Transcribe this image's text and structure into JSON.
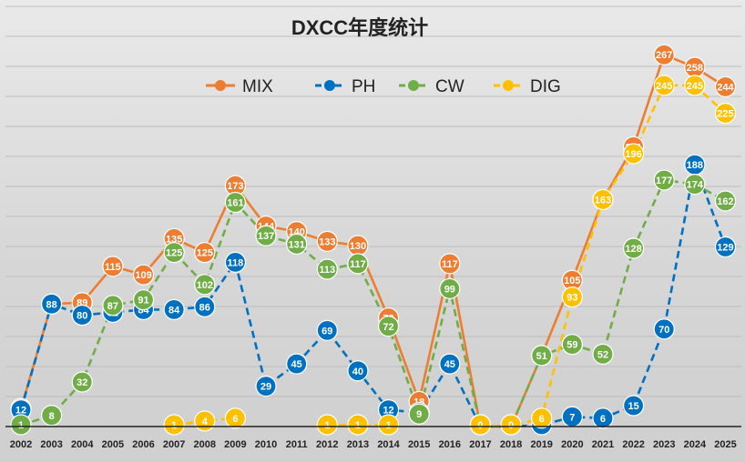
{
  "chart_data": {
    "type": "line",
    "title": "DXCC年度统计",
    "xlabel": "",
    "ylabel": "",
    "legend_position": "top-center",
    "grid": true,
    "ylim": [
      0,
      290
    ],
    "categories": [
      "2002",
      "2003",
      "2004",
      "2005",
      "2006",
      "2007",
      "2008",
      "2009",
      "2010",
      "2011",
      "2012",
      "2013",
      "2014",
      "2015",
      "2016",
      "2017",
      "2018",
      "2019",
      "2020",
      "2021",
      "2022",
      "2023",
      "2024",
      "2025"
    ],
    "series": [
      {
        "name": "MIX",
        "color": "#ed7d31",
        "dash": false,
        "values": [
          13,
          88,
          89,
          115,
          109,
          135,
          125,
          173,
          144,
          140,
          133,
          130,
          78,
          18,
          117,
          0,
          0,
          51,
          105,
          163,
          201,
          267,
          258,
          244
        ]
      },
      {
        "name": "PH",
        "color": "#0070c0",
        "dash": true,
        "values": [
          12,
          88,
          80,
          82,
          84,
          84,
          86,
          118,
          29,
          45,
          69,
          40,
          12,
          10,
          45,
          0,
          0,
          1,
          7,
          6,
          15,
          70,
          188,
          129
        ]
      },
      {
        "name": "CW",
        "color": "#70ad47",
        "dash": true,
        "values": [
          1,
          8,
          32,
          87,
          91,
          125,
          102,
          161,
          137,
          131,
          113,
          117,
          72,
          9,
          99,
          0,
          0,
          51,
          59,
          52,
          128,
          177,
          174,
          162
        ]
      },
      {
        "name": "DIG",
        "color": "#ffc000",
        "dash": true,
        "values": [
          null,
          null,
          null,
          null,
          null,
          1,
          4,
          6,
          null,
          null,
          1,
          1,
          1,
          null,
          null,
          0,
          0,
          6,
          93,
          163,
          196,
          245,
          245,
          225
        ]
      }
    ]
  }
}
